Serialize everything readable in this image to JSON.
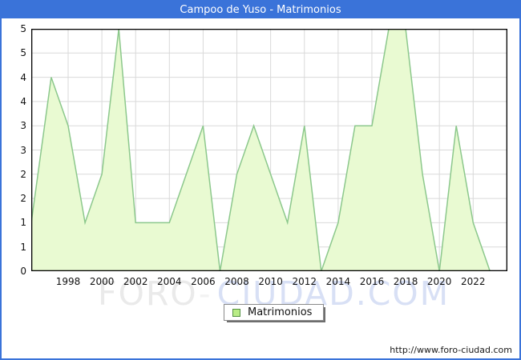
{
  "title": "Campoo de Yuso - Matrimonios",
  "watermark": {
    "part1": "FORO",
    "dash": "-",
    "part2": "CIUDAD.COM"
  },
  "legend": {
    "label": "Matrimonios",
    "swatch_fill": "#b9ec86",
    "swatch_border": "#559144"
  },
  "footer": {
    "url": "http://www.foro-ciudad.com"
  },
  "colors": {
    "frame_border": "#3a73d9",
    "titlebar_bg": "#3a73d9",
    "titlebar_text": "#ffffff",
    "plot_border": "#000000",
    "gridline": "#d9d9d9",
    "area_fill": "#e9fad2",
    "area_stroke": "#8cc88c",
    "watermark_gray": "#eaeaea",
    "watermark_blue": "#d8e0f5"
  },
  "chart_data": {
    "type": "area",
    "title": "Campoo de Yuso - Matrimonios",
    "series_name": "Matrimonios",
    "x": [
      1996,
      1997,
      1998,
      1999,
      2000,
      2001,
      2002,
      2003,
      2004,
      2005,
      2006,
      2007,
      2008,
      2009,
      2010,
      2011,
      2012,
      2013,
      2014,
      2015,
      2016,
      2017,
      2018,
      2019,
      2020,
      2021,
      2022,
      2023
    ],
    "values": [
      1,
      4,
      3,
      1,
      2,
      5,
      1,
      1,
      1,
      2,
      3,
      0,
      2,
      3,
      2,
      1,
      3,
      0,
      1,
      3,
      3,
      5,
      5,
      2,
      0,
      3,
      1,
      0
    ],
    "ylim": [
      0,
      5
    ],
    "ytick_step": 0.5,
    "ytick_labels": [
      "5",
      "5",
      "4",
      "4",
      "3",
      "3",
      "2",
      "2",
      "1",
      "1",
      "0"
    ],
    "xtick_years": [
      1998,
      2000,
      2002,
      2004,
      2006,
      2008,
      2010,
      2012,
      2014,
      2016,
      2018,
      2020,
      2022
    ],
    "grid": true,
    "legend_position": "bottom-center"
  }
}
